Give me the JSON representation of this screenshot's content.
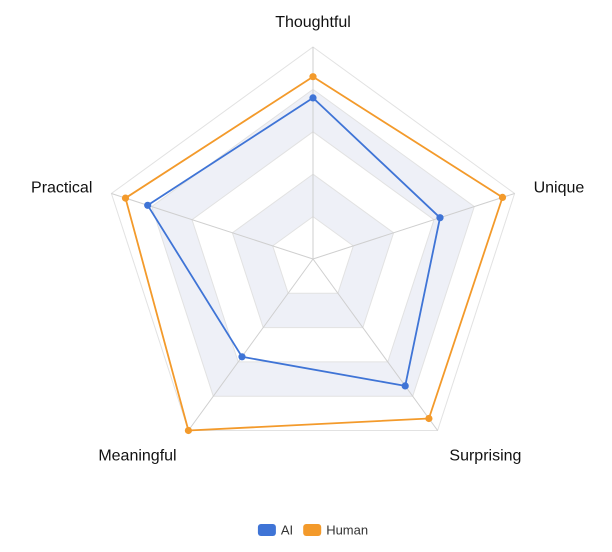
{
  "chart_data": {
    "type": "radar",
    "title": "",
    "axes": [
      "Thoughtful",
      "Unique",
      "Surprising",
      "Meaningful",
      "Practical"
    ],
    "range": [
      0,
      1
    ],
    "grid_levels": 5,
    "series": [
      {
        "name": "AI",
        "color": "#3f74d6",
        "values": [
          0.76,
          0.63,
          0.74,
          0.57,
          0.82
        ]
      },
      {
        "name": "Human",
        "color": "#f39a2b",
        "values": [
          0.86,
          0.94,
          0.93,
          1.0,
          0.93
        ]
      }
    ],
    "legend_position": "bottom-center",
    "band_color": "#eef0f7",
    "grid_color": "#e2e2e2",
    "spoke_color": "#cfcfcf"
  }
}
